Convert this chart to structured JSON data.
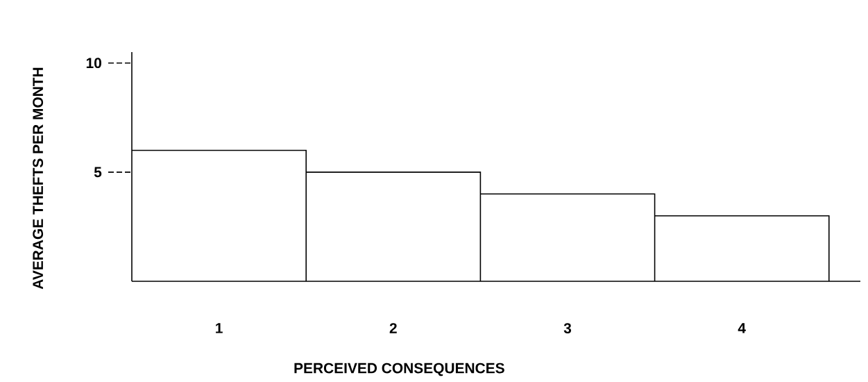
{
  "chart_data": {
    "type": "bar",
    "xlabel": "PERCEIVED CONSEQUENCES",
    "ylabel": "AVERAGE THEFTS PER MONTH",
    "categories": [
      "1",
      "2",
      "3",
      "4"
    ],
    "values": [
      6,
      5,
      4,
      3
    ],
    "color": "#ffffff",
    "ylim": [
      0,
      10.5
    ],
    "yticks": [
      5,
      10
    ]
  }
}
